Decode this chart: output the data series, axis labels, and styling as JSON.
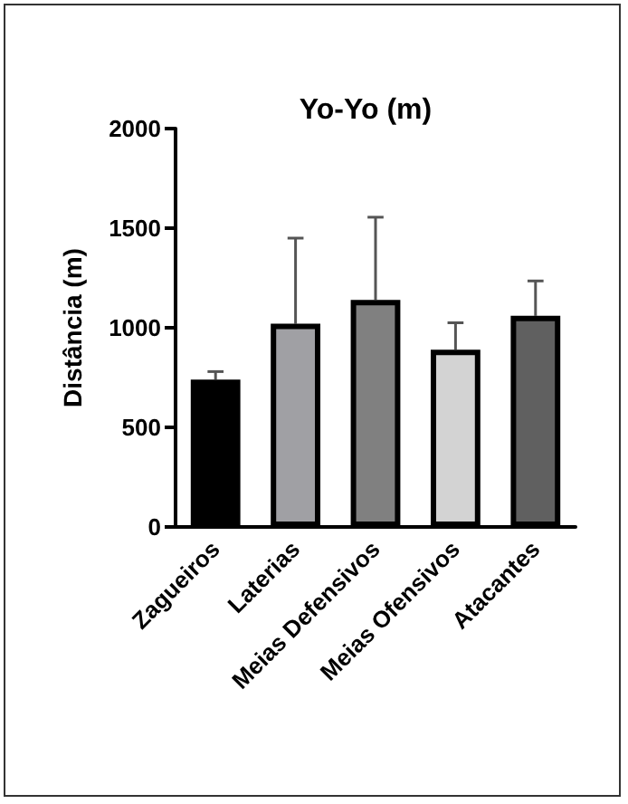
{
  "chart_data": {
    "type": "bar",
    "title": "Yo-Yo (m)",
    "ylabel": "Distância (m)",
    "categories": [
      "Zagueiros",
      "Laterias",
      "Meias Defensivos",
      "Meias Ofensivos",
      "Atacantes"
    ],
    "values": [
      740,
      1020,
      1140,
      890,
      1060
    ],
    "colors": [
      "#000000",
      "#a0a0a4",
      "#808080",
      "#d3d3d3",
      "#606060"
    ],
    "errors": [
      [
        740,
        780
      ],
      [
        1020,
        1450
      ],
      [
        1140,
        1555
      ],
      [
        890,
        1025
      ],
      [
        1060,
        1235
      ]
    ],
    "ylim": [
      0,
      2000
    ],
    "yticks": [
      0,
      500,
      1000,
      1500,
      2000
    ],
    "grid": false
  }
}
